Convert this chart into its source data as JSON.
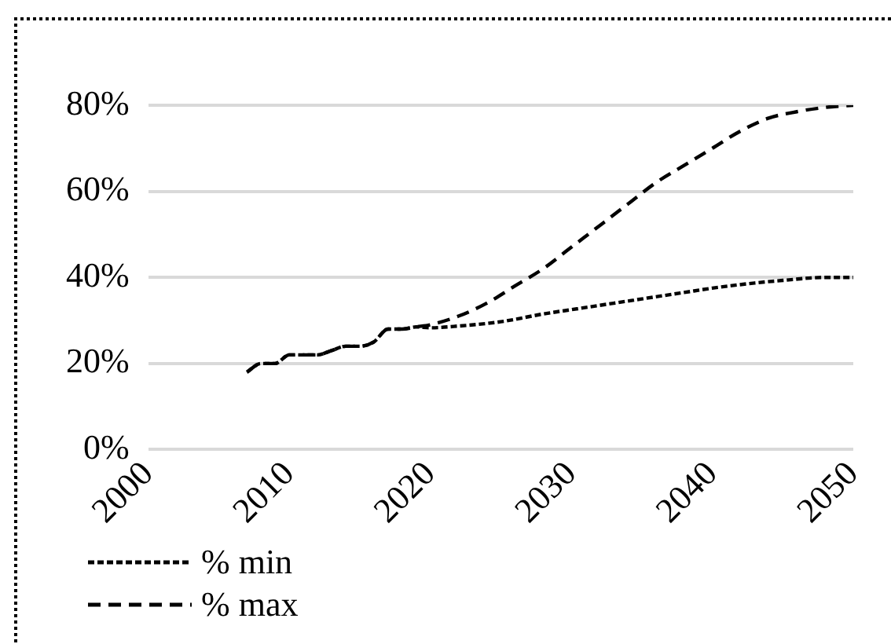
{
  "chart_data": {
    "type": "line",
    "xlim": [
      2000,
      2050
    ],
    "xticks": [
      2000,
      2010,
      2020,
      2030,
      2040,
      2050
    ],
    "ylim": [
      0,
      0.8
    ],
    "yticks": [
      {
        "value": 0,
        "label": "0%"
      },
      {
        "value": 0.2,
        "label": "20%"
      },
      {
        "value": 0.4,
        "label": "40%"
      },
      {
        "value": 0.6,
        "label": "60%"
      },
      {
        "value": 0.8,
        "label": "80%"
      }
    ],
    "grid": "y",
    "legend": "bottom left",
    "marker": "none",
    "series": [
      {
        "name": "% min",
        "color": "#000000",
        "line_style": "dotted",
        "x": [
          2007,
          2008,
          2009,
          2010,
          2011,
          2012,
          2013,
          2014,
          2015,
          2016,
          2017,
          2018,
          2019,
          2020,
          2022,
          2025,
          2028,
          2030,
          2033,
          2035,
          2038,
          2040,
          2043,
          2045,
          2048,
          2050
        ],
        "values": [
          0.18,
          0.2,
          0.2,
          0.22,
          0.22,
          0.22,
          0.23,
          0.24,
          0.24,
          0.25,
          0.28,
          0.28,
          0.285,
          0.283,
          0.287,
          0.297,
          0.315,
          0.325,
          0.34,
          0.35,
          0.365,
          0.375,
          0.387,
          0.393,
          0.4,
          0.4
        ]
      },
      {
        "name": "% max",
        "color": "#000000",
        "line_style": "dashed",
        "x": [
          2007,
          2008,
          2009,
          2010,
          2011,
          2012,
          2013,
          2014,
          2015,
          2016,
          2017,
          2018,
          2019,
          2020,
          2022,
          2024,
          2026,
          2028,
          2030,
          2032,
          2034,
          2036,
          2038,
          2040,
          2042,
          2044,
          2046,
          2048,
          2050
        ],
        "values": [
          0.18,
          0.2,
          0.2,
          0.22,
          0.22,
          0.22,
          0.23,
          0.24,
          0.24,
          0.25,
          0.28,
          0.28,
          0.285,
          0.29,
          0.31,
          0.34,
          0.38,
          0.42,
          0.47,
          0.52,
          0.57,
          0.62,
          0.66,
          0.7,
          0.74,
          0.77,
          0.785,
          0.795,
          0.8
        ]
      }
    ]
  }
}
